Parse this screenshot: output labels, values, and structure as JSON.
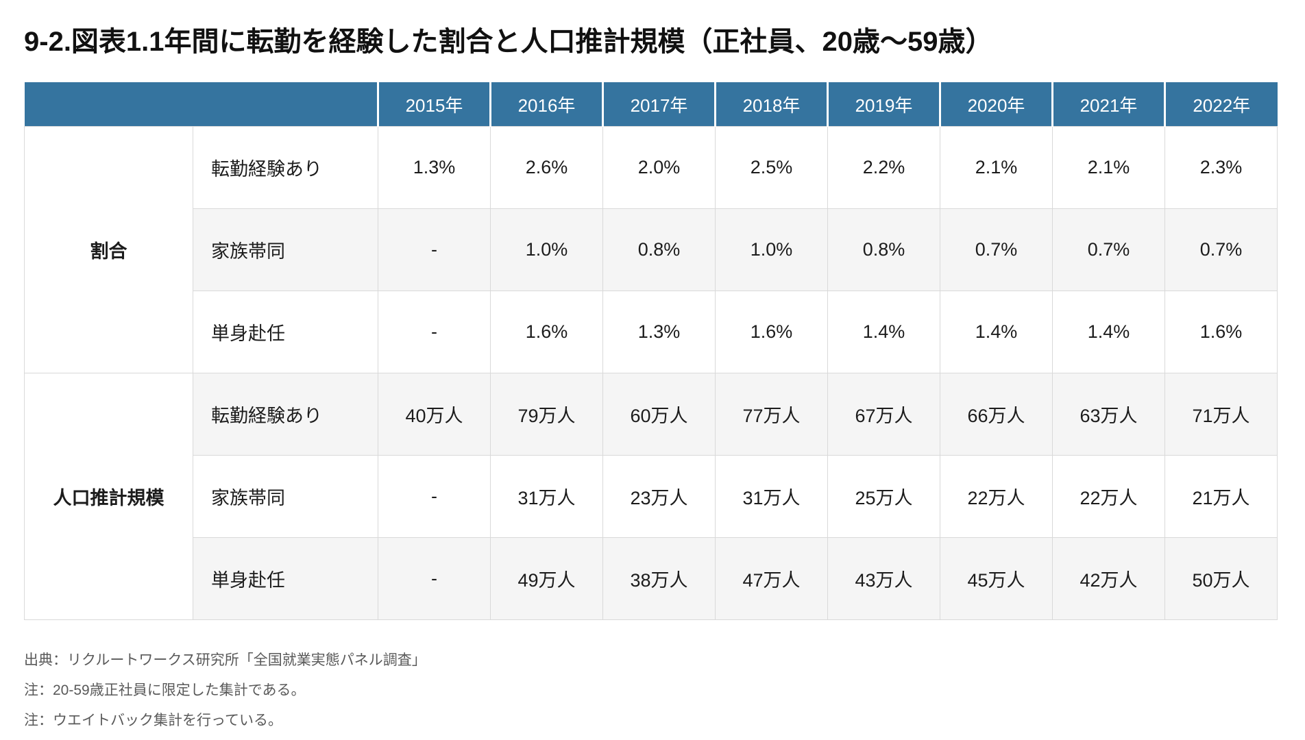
{
  "page": {
    "title": "9-2.図表1.1年間に転勤を経験した割合と人口推計規模（正社員、20歳～59歳）"
  },
  "colors": {
    "header_bg": "#35749F",
    "header_text": "#FFFFFF",
    "stripe_bg": "#F5F5F5",
    "border": "#D9D9D9",
    "body_text": "#1C1C1C",
    "note_text": "#595959"
  },
  "chart_data": {
    "type": "table",
    "title": "9-2.図表1.1年間に転勤を経験した割合と人口推計規模（正社員、20歳～59歳）",
    "columns": [
      "2015年",
      "2016年",
      "2017年",
      "2018年",
      "2019年",
      "2020年",
      "2021年",
      "2022年"
    ],
    "groups": [
      {
        "label": "割合",
        "rows": [
          {
            "label": "転勤経験あり",
            "values": [
              "1.3%",
              "2.6%",
              "2.0%",
              "2.5%",
              "2.2%",
              "2.1%",
              "2.1%",
              "2.3%"
            ]
          },
          {
            "label": "家族帯同",
            "values": [
              "-",
              "1.0%",
              "0.8%",
              "1.0%",
              "0.8%",
              "0.7%",
              "0.7%",
              "0.7%"
            ]
          },
          {
            "label": "単身赴任",
            "values": [
              "-",
              "1.6%",
              "1.3%",
              "1.6%",
              "1.4%",
              "1.4%",
              "1.4%",
              "1.6%"
            ]
          }
        ]
      },
      {
        "label": "人口推計規模",
        "rows": [
          {
            "label": "転勤経験あり",
            "values": [
              "40万人",
              "79万人",
              "60万人",
              "77万人",
              "67万人",
              "66万人",
              "63万人",
              "71万人"
            ]
          },
          {
            "label": "家族帯同",
            "values": [
              "-",
              "31万人",
              "23万人",
              "31万人",
              "25万人",
              "22万人",
              "22万人",
              "21万人"
            ]
          },
          {
            "label": "単身赴任",
            "values": [
              "-",
              "49万人",
              "38万人",
              "47万人",
              "43万人",
              "45万人",
              "42万人",
              "50万人"
            ]
          }
        ]
      }
    ],
    "layout": {
      "grid": true,
      "stripe_rows": true,
      "header_position": "top"
    }
  },
  "notes": [
    "出典：リクルートワークス研究所「全国就業実態パネル調査」",
    "注：20-59歳正社員に限定した集計である。",
    "注：ウエイトバック集計を行っている。"
  ]
}
